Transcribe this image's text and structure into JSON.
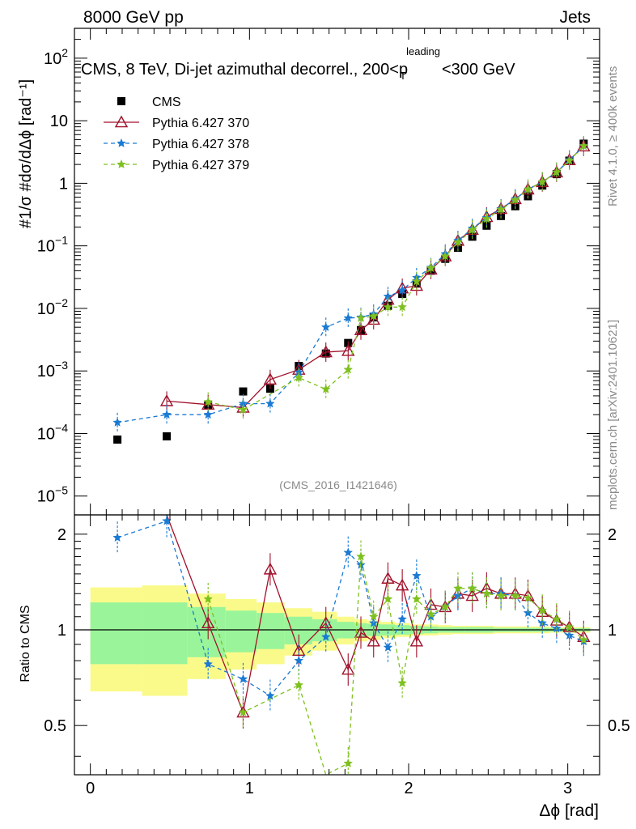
{
  "header": {
    "left": "8000 GeV pp",
    "right": "Jets"
  },
  "side": {
    "rivet": "Rivet 4.1.0, ≥ 400k events",
    "mcplots": "mcplots.cern.ch [arXiv:2401.10621]"
  },
  "watermark": "(CMS_2016_I1421646)",
  "chart_data": {
    "type": "line",
    "title": "CMS, 8 TeV, Di-jet azimuthal decorrel., 200<p_T^leading<300 GeV",
    "xlabel": "Δϕ [rad]",
    "ylabel": "#1/σ #dσ/dΔϕ [rad⁻¹]",
    "ratio_ylabel": "Ratio to CMS",
    "xlim": [
      -0.1,
      3.2
    ],
    "ylim_log": [
      5e-06,
      300
    ],
    "ratio_ylim": [
      0.35,
      2.3
    ],
    "x_ticks": [
      "0",
      "1",
      "2",
      "3"
    ],
    "y_ticks": [
      "10^-5",
      "10^-4",
      "10^-3",
      "10^-2",
      "10^-1",
      "1",
      "10",
      "10^2"
    ],
    "ratio_ticks": [
      "0.5",
      "1",
      "2"
    ],
    "legend": [
      "CMS",
      "Pythia 6.427 370",
      "Pythia 6.427 378",
      "Pythia 6.427 379"
    ],
    "colors": {
      "cms": "#000000",
      "p370": "#a0102a",
      "p378": "#1a7ad4",
      "p379": "#7ec01e",
      "band_inner": "#9af59a",
      "band_outer": "#fafa8a"
    },
    "cms": {
      "x": [
        0.17,
        0.48,
        0.74,
        0.96,
        1.13,
        1.31,
        1.48,
        1.62,
        1.7,
        1.78,
        1.87,
        1.96,
        2.05,
        2.14,
        2.23,
        2.31,
        2.4,
        2.49,
        2.58,
        2.67,
        2.75,
        2.84,
        2.93,
        3.01,
        3.1
      ],
      "y": [
        8e-05,
        9e-05,
        0.00028,
        0.00047,
        0.00052,
        0.0012,
        0.0019,
        0.0028,
        0.0045,
        0.0072,
        0.011,
        0.017,
        0.025,
        0.04,
        0.062,
        0.093,
        0.14,
        0.21,
        0.3,
        0.43,
        0.62,
        0.92,
        1.4,
        2.3,
        4.3
      ],
      "band_inner": [
        0.22,
        0.22,
        0.18,
        0.15,
        0.13,
        0.1,
        0.08,
        0.06,
        0.05,
        0.045,
        0.04,
        0.035,
        0.03,
        0.025,
        0.02,
        0.02,
        0.02,
        0.02,
        0.015,
        0.015,
        0.015,
        0.015,
        0.012,
        0.012,
        0.012
      ],
      "band_outer": [
        0.36,
        0.38,
        0.3,
        0.25,
        0.22,
        0.17,
        0.14,
        0.1,
        0.08,
        0.07,
        0.06,
        0.05,
        0.04,
        0.04,
        0.035,
        0.03,
        0.03,
        0.03,
        0.025,
        0.025,
        0.025,
        0.025,
        0.02,
        0.02,
        0.02
      ]
    },
    "series": [
      {
        "name": "Pythia 6.427 370",
        "x": [
          0.48,
          0.74,
          0.96,
          1.13,
          1.31,
          1.48,
          1.62,
          1.7,
          1.78,
          1.87,
          1.96,
          2.05,
          2.14,
          2.23,
          2.31,
          2.4,
          2.49,
          2.58,
          2.67,
          2.75,
          2.84,
          2.93,
          3.01,
          3.1
        ],
        "y": [
          0.00033,
          0.00029,
          0.00026,
          0.00073,
          0.00105,
          0.002,
          0.0021,
          0.0045,
          0.0066,
          0.0138,
          0.021,
          0.023,
          0.042,
          0.068,
          0.121,
          0.181,
          0.29,
          0.39,
          0.56,
          0.8,
          1.05,
          1.5,
          2.35,
          3.9
        ],
        "ratio": [
          3.5,
          1.05,
          0.55,
          1.55,
          0.86,
          1.05,
          0.75,
          0.98,
          0.92,
          1.45,
          1.38,
          0.92,
          1.2,
          1.18,
          1.3,
          1.28,
          1.35,
          1.3,
          1.3,
          1.28,
          1.14,
          1.07,
          1.02,
          0.95
        ]
      },
      {
        "name": "Pythia 6.427 378",
        "x": [
          0.17,
          0.48,
          0.74,
          0.96,
          1.13,
          1.31,
          1.48,
          1.62,
          1.7,
          1.78,
          1.87,
          1.96,
          2.05,
          2.14,
          2.23,
          2.31,
          2.4,
          2.49,
          2.58,
          2.67,
          2.75,
          2.84,
          2.93,
          3.01,
          3.1
        ],
        "y": [
          0.00015,
          0.0002,
          0.0002,
          0.0003,
          0.0003,
          0.00095,
          0.005,
          0.007,
          0.0072,
          0.0081,
          0.0155,
          0.0195,
          0.031,
          0.045,
          0.074,
          0.121,
          0.19,
          0.28,
          0.39,
          0.56,
          0.8,
          1.05,
          1.5,
          2.35,
          3.95
        ],
        "ratio": [
          1.95,
          2.2,
          0.78,
          0.7,
          0.62,
          0.8,
          0.95,
          1.75,
          1.6,
          1.05,
          0.88,
          1.08,
          1.48,
          1.1,
          1.18,
          1.28,
          1.35,
          1.3,
          1.3,
          1.28,
          1.13,
          1.05,
          1.01,
          0.96,
          0.92
        ]
      },
      {
        "name": "Pythia 6.427 379",
        "x": [
          0.74,
          0.96,
          1.31,
          1.48,
          1.62,
          1.7,
          1.78,
          1.87,
          1.96,
          2.05,
          2.14,
          2.23,
          2.31,
          2.4,
          2.49,
          2.58,
          2.67,
          2.75,
          2.84,
          2.93,
          3.01,
          3.1
        ],
        "y": [
          0.00032,
          0.00024,
          0.00078,
          0.00051,
          0.00105,
          0.007,
          0.0075,
          0.0105,
          0.0105,
          0.027,
          0.044,
          0.068,
          0.114,
          0.18,
          0.27,
          0.38,
          0.54,
          0.8,
          1.05,
          1.5,
          2.3,
          3.95
        ],
        "ratio": [
          1.25,
          0.55,
          0.67,
          0.28,
          0.38,
          1.7,
          1.1,
          1.25,
          0.68,
          1.25,
          1.12,
          1.18,
          1.35,
          1.35,
          1.3,
          1.28,
          1.28,
          1.26,
          1.15,
          1.08,
          1.02,
          0.93
        ]
      }
    ]
  }
}
